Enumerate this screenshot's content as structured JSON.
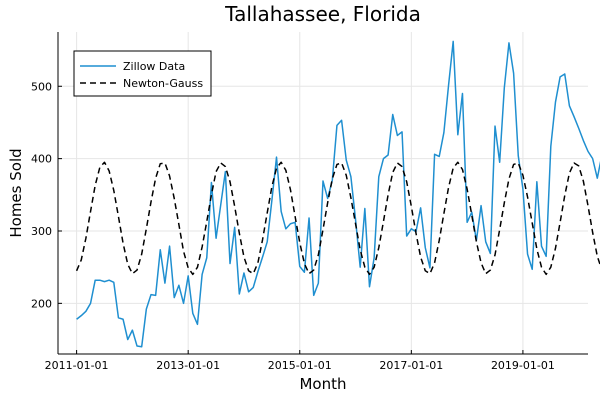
{
  "chart_data": {
    "type": "line",
    "title": "Tallahassee, Florida",
    "xlabel": "Month",
    "ylabel": "Homes Sold",
    "xlim": [
      "2010-09-01",
      "2020-03-01"
    ],
    "ylim": [
      130,
      575
    ],
    "xticks": [
      {
        "label": "2011-01-01",
        "value": "2011-01-01"
      },
      {
        "label": "2013-01-01",
        "value": "2013-01-01"
      },
      {
        "label": "2015-01-01",
        "value": "2015-01-01"
      },
      {
        "label": "2017-01-01",
        "value": "2017-01-01"
      },
      {
        "label": "2019-01-01",
        "value": "2019-01-01"
      }
    ],
    "yticks": [
      200,
      300,
      400,
      500
    ],
    "grid": true,
    "legend_position": "top-left",
    "colors": {
      "zillow": "#1f8fd0",
      "newton": "#000000"
    },
    "series": [
      {
        "name": "Zillow Data",
        "style": "solid",
        "x_start": "2011-01",
        "x_step": "1 month",
        "values": [
          178,
          183,
          189,
          200,
          232,
          232,
          230,
          232,
          229,
          180,
          178,
          150,
          163,
          141,
          140,
          192,
          212,
          211,
          274,
          228,
          279,
          208,
          225,
          200,
          238,
          186,
          171,
          240,
          263,
          367,
          290,
          336,
          382,
          255,
          305,
          213,
          242,
          216,
          222,
          244,
          264,
          285,
          342,
          402,
          327,
          303,
          310,
          312,
          251,
          243,
          318,
          211,
          228,
          369,
          345,
          370,
          446,
          453,
          398,
          375,
          316,
          250,
          331,
          223,
          263,
          375,
          400,
          405,
          461,
          432,
          437,
          293,
          303,
          299,
          332,
          277,
          249,
          406,
          403,
          436,
          501,
          562,
          433,
          490,
          312,
          326,
          287,
          335,
          285,
          269,
          445,
          395,
          498,
          560,
          518,
          404,
          358,
          268,
          247,
          368,
          279,
          265,
          417,
          478,
          513,
          517,
          473,
          458,
          442,
          425,
          410,
          400,
          373,
          405,
          278
        ]
      },
      {
        "name": "Newton-Gauss",
        "style": "dashed",
        "x_start": "2011-01",
        "x_step": "1 month",
        "values": [
          245,
          260,
          290,
          327,
          363,
          388,
          395,
          383,
          356,
          320,
          283,
          254,
          241,
          246,
          268,
          303,
          340,
          373,
          393,
          394,
          376,
          345,
          309,
          272,
          249,
          240,
          250,
          278,
          313,
          350,
          382,
          394,
          389,
          368,
          334,
          297,
          264,
          245,
          241,
          256,
          288,
          325,
          361,
          387,
          395,
          384,
          357,
          320,
          284,
          255,
          241,
          246,
          267,
          302,
          339,
          372,
          392,
          394,
          377,
          346,
          310,
          274,
          250,
          240,
          250,
          277,
          313,
          350,
          381,
          394,
          389,
          368,
          334,
          297,
          264,
          245,
          241,
          256,
          287,
          324,
          360,
          387,
          395,
          385,
          358,
          322,
          285,
          256,
          241,
          246,
          267,
          302,
          339,
          372,
          392,
          394,
          377,
          347,
          311,
          275,
          250,
          240,
          250,
          276,
          312,
          349,
          380,
          394,
          390,
          369,
          335,
          298,
          265,
          246,
          241,
          256
        ]
      }
    ]
  }
}
